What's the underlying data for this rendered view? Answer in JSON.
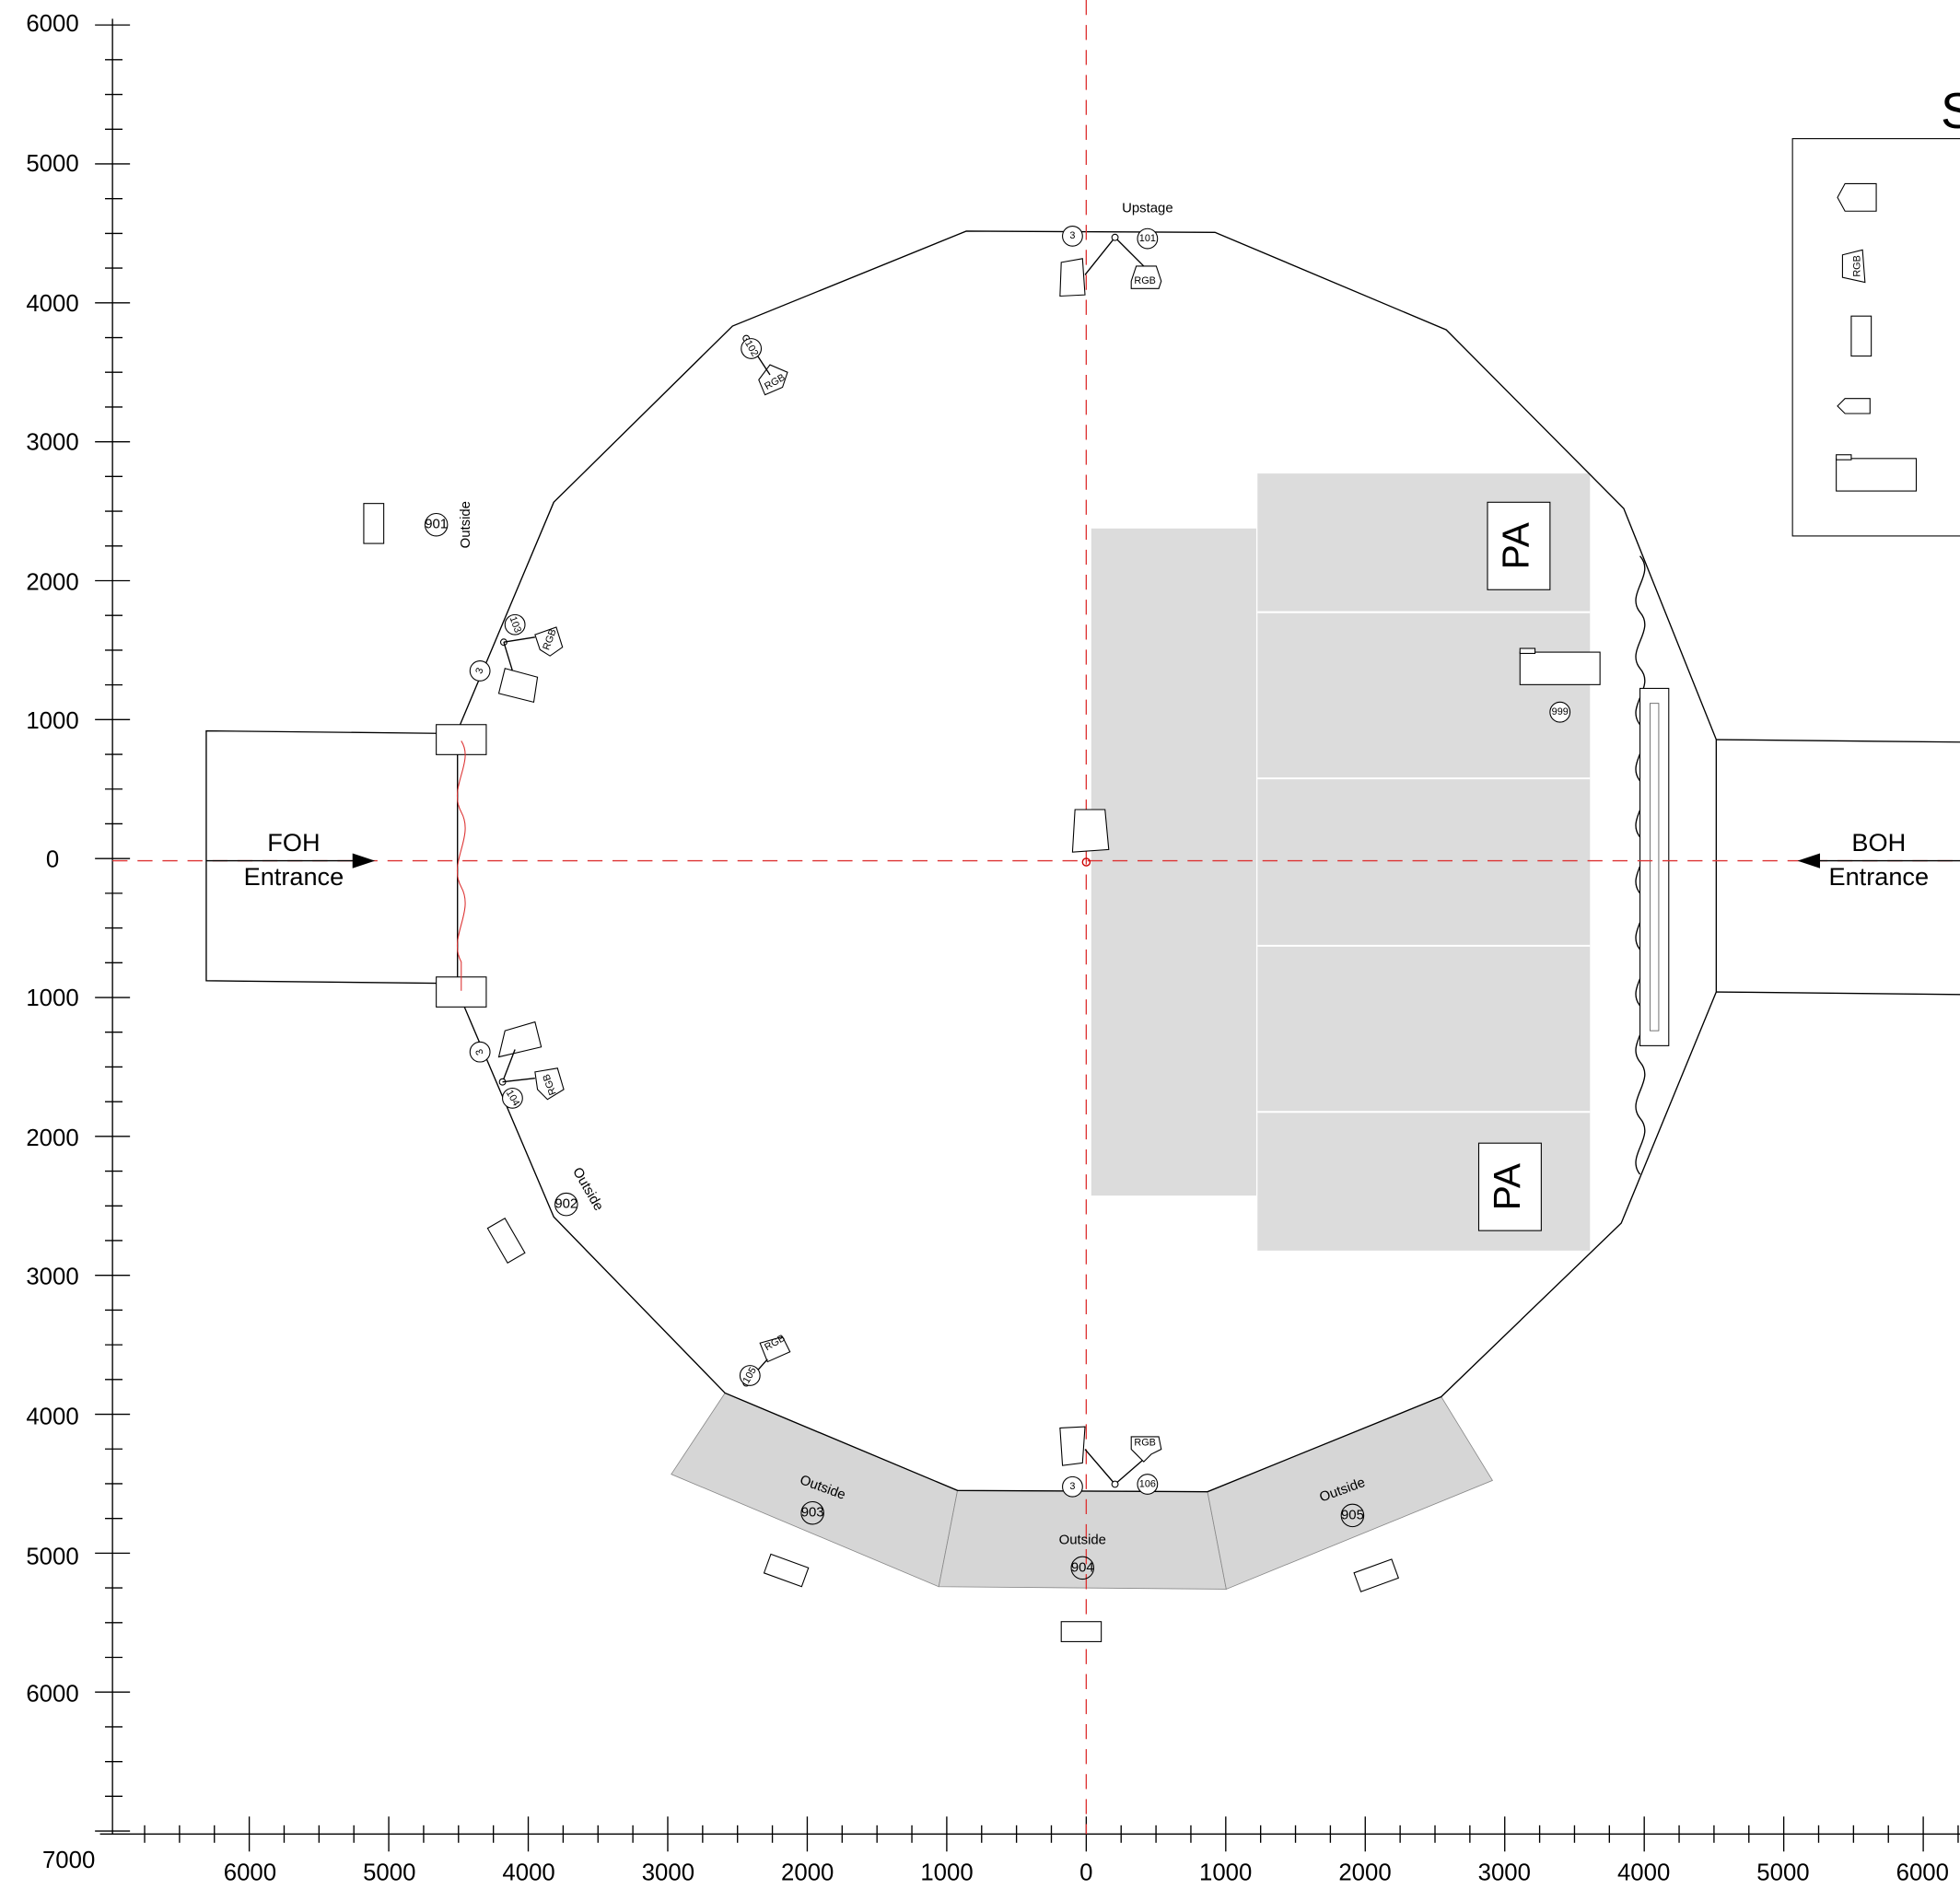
{
  "axes": {
    "left": [
      "6000",
      "5000",
      "4000",
      "3000",
      "2000",
      "1000",
      "0",
      "1000",
      "2000",
      "3000",
      "4000",
      "5000",
      "6000",
      "7000"
    ],
    "bottom": [
      "6000",
      "5000",
      "4000",
      "3000",
      "2000",
      "1000",
      "0",
      "1000",
      "2000",
      "3000",
      "4000",
      "5000",
      "6000"
    ]
  },
  "labels": {
    "upstage": "Upstage",
    "foh": "FOH",
    "foh_entrance": "Entrance",
    "boh": "BOH",
    "boh_entrance": "Entrance",
    "pa_top": "PA",
    "pa_bottom": "PA",
    "legend_title": "S",
    "legend_rgb": "RGB"
  },
  "fixtures": [
    {
      "number": "3"
    },
    {
      "number": "101"
    },
    {
      "number": "102"
    },
    {
      "number": "103"
    },
    {
      "number": "3"
    },
    {
      "number": "3"
    },
    {
      "number": "104"
    },
    {
      "number": "105"
    },
    {
      "number": "3"
    },
    {
      "number": "106"
    },
    {
      "number": "999"
    }
  ],
  "zones": [
    {
      "label": "Outside",
      "number": "901"
    },
    {
      "label": "Outside",
      "number": "902"
    },
    {
      "label": "Outside",
      "number": "903"
    },
    {
      "label": "Outside",
      "number": "904"
    },
    {
      "label": "Outside",
      "number": "905"
    }
  ],
  "rgb_tags": [
    "RGB",
    "RGB",
    "RGB",
    "RGB",
    "RGB",
    "RGB"
  ]
}
